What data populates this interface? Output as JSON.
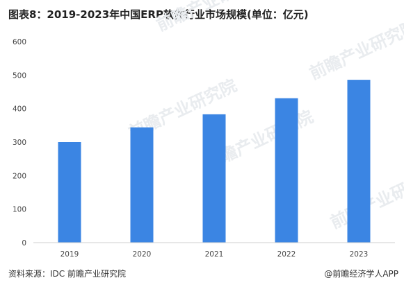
{
  "chart_data": {
    "type": "bar",
    "title": "图表8：2019-2023年中国ERP软件行业市场规模(单位：亿元)",
    "categories": [
      "2019",
      "2020",
      "2021",
      "2022",
      "2023"
    ],
    "values": [
      300,
      344,
      383,
      431,
      486
    ],
    "ylim": [
      0,
      600
    ],
    "yticks": [
      0,
      100,
      200,
      300,
      400,
      500,
      600
    ],
    "bar_color": "#3b85e3",
    "grid": false,
    "legend": "none"
  },
  "footer": {
    "source": "资料来源：IDC 前瞻产业研究院",
    "credit": "@前瞻经济学人APP"
  },
  "watermark": "前瞻产业研究院"
}
